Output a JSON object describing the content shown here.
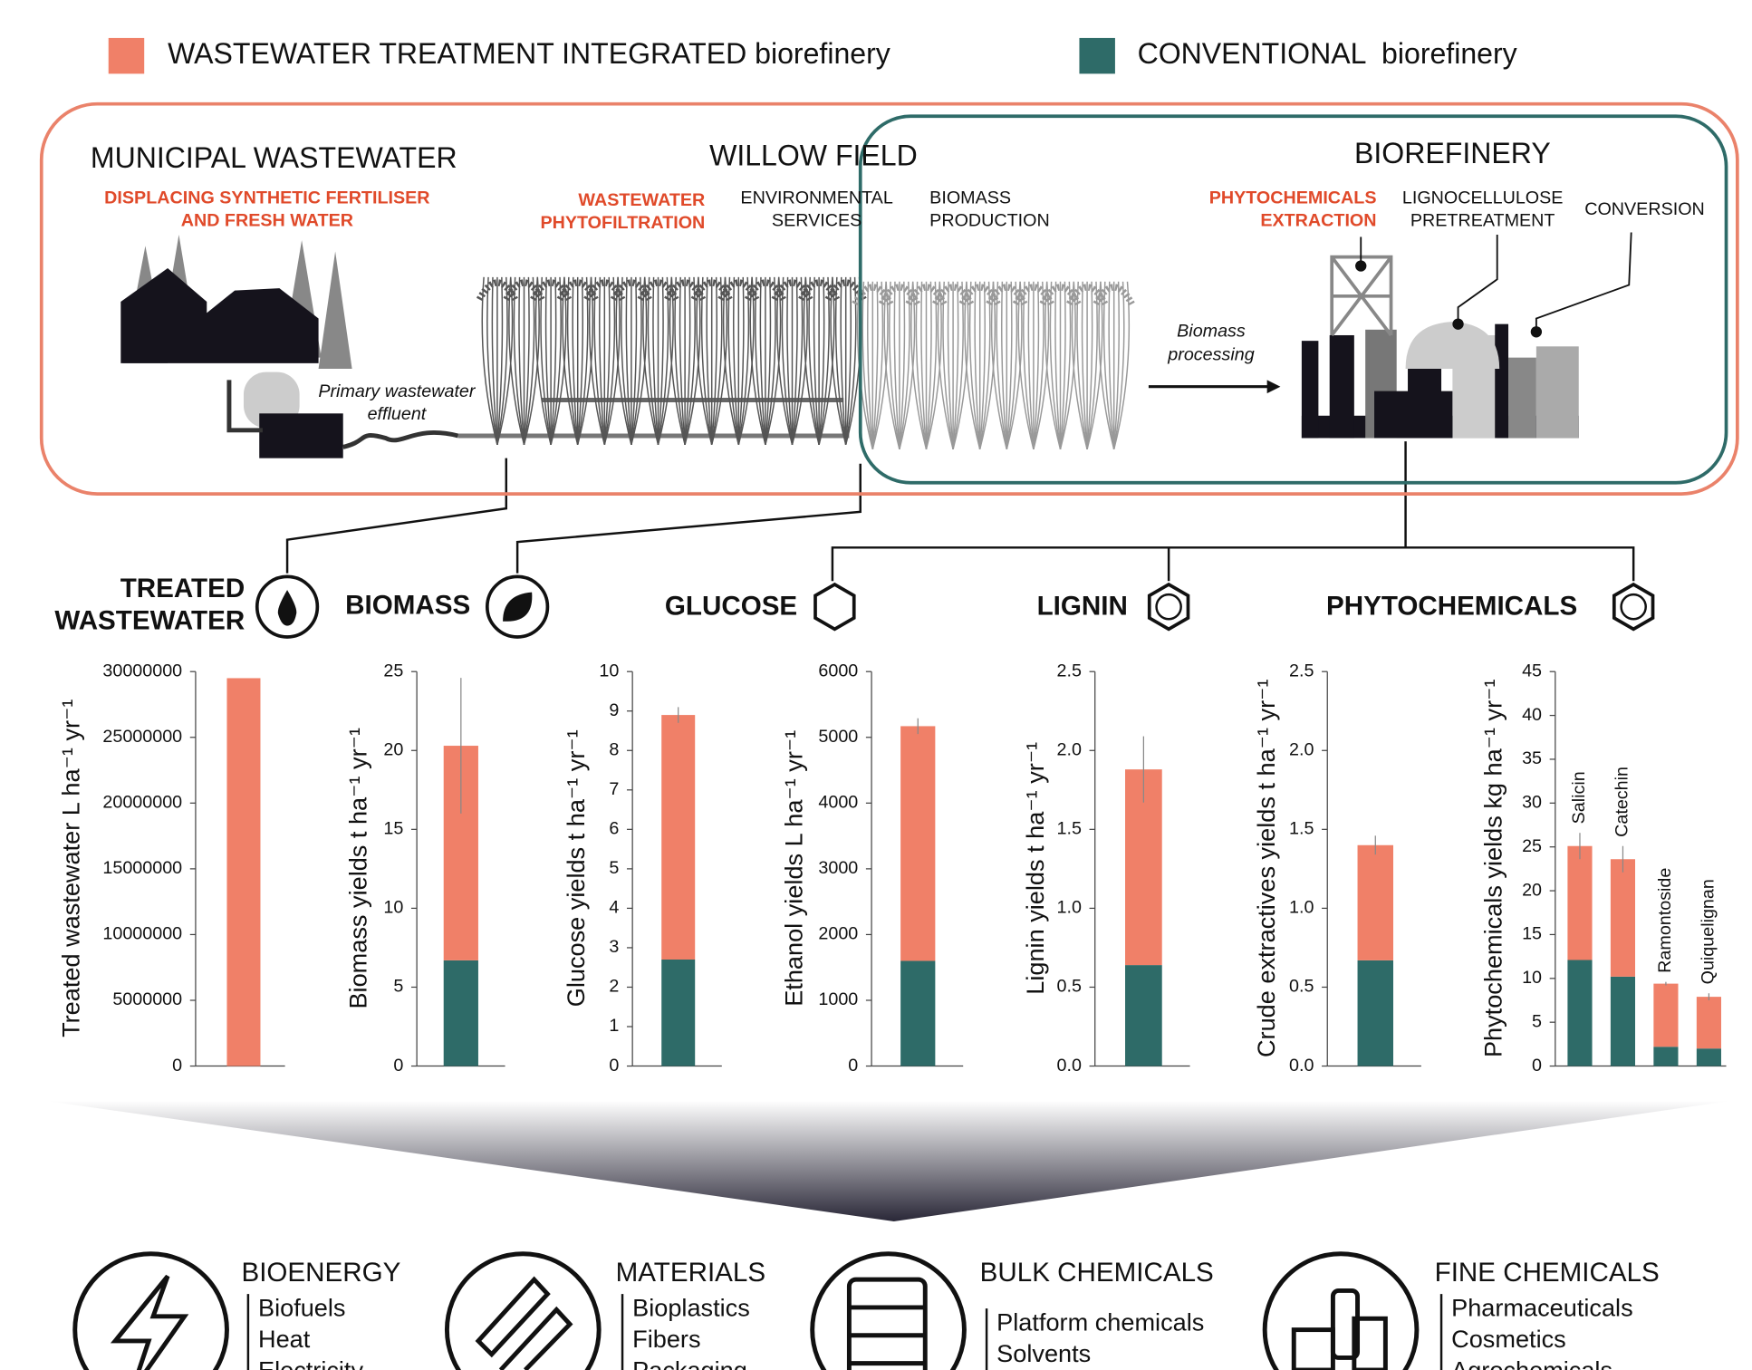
{
  "legend": [
    {
      "label": "WASTEWATER TREATMENT INTEGRATED biorefinery",
      "color": "#f08068"
    },
    {
      "label": "CONVENTIONAL  biorefinery",
      "color": "#2e6b68"
    }
  ],
  "diagram": {
    "municipal": {
      "title": "MUNICIPAL WASTEWATER",
      "note": [
        "DISPLACING SYNTHETIC FERTILISER",
        "AND FRESH WATER"
      ]
    },
    "effluent": [
      "Primary wastewater",
      "effluent"
    ],
    "willow": {
      "title": "WILLOW FIELD",
      "phytofiltration": [
        "WASTEWATER",
        "PHYTOFILTRATION"
      ],
      "services": [
        "ENVIRONMENTAL",
        "SERVICES"
      ],
      "production": [
        "BIOMASS",
        "PRODUCTION"
      ]
    },
    "processing": [
      "Biomass",
      "processing"
    ],
    "biorefinery": {
      "title": "BIOREFINERY",
      "extraction": [
        "PHYTOCHEMICALS",
        "EXTRACTION"
      ],
      "pretreatment": [
        "LIGNOCELLULOSE",
        "PRETREATMENT"
      ],
      "conversion": "CONVERSION"
    },
    "products": {
      "treated_wastewater": [
        "TREATED",
        "WASTEWATER"
      ],
      "biomass": "BIOMASS",
      "glucose": "GLUCOSE",
      "lignin": "LIGNIN",
      "phytochemicals": "PHYTOCHEMICALS"
    },
    "applications": [
      {
        "title": "BIOENERGY",
        "items": [
          "Biofuels",
          "Heat",
          "Electricity"
        ]
      },
      {
        "title": "MATERIALS",
        "items": [
          "Bioplastics",
          "Fibers",
          "Packaging"
        ]
      },
      {
        "title": "BULK CHEMICALS",
        "items": [
          "Platform chemicals",
          "Solvents"
        ]
      },
      {
        "title": "FINE CHEMICALS",
        "items": [
          "Pharmaceuticals",
          "Cosmetics",
          "Agrochemicals"
        ]
      }
    ]
  },
  "chart_data": [
    {
      "type": "bar",
      "stacked": true,
      "ylabel": "Treated wastewater L ha⁻¹ yr⁻¹",
      "categories": [
        null
      ],
      "series": [
        {
          "color": "#f08068",
          "values": [
            29500000
          ]
        }
      ],
      "ylim": [
        0,
        30000000
      ],
      "yticks": [
        0,
        5000000,
        10000000,
        15000000,
        20000000,
        25000000,
        30000000
      ]
    },
    {
      "type": "bar",
      "stacked": true,
      "ylabel": "Biomass yields t ha⁻¹ yr⁻¹",
      "categories": [
        null
      ],
      "series": [
        {
          "color": "#2e6b68",
          "values": [
            6.7
          ]
        },
        {
          "color": "#f08068",
          "values": [
            13.6
          ],
          "errors": [
            4.3
          ]
        }
      ],
      "ylim": [
        0,
        25
      ],
      "yticks": [
        0,
        5,
        10,
        15,
        20,
        25
      ]
    },
    {
      "type": "bar",
      "stacked": true,
      "ylabel": "Glucose yields t ha⁻¹ yr⁻¹",
      "categories": [
        null
      ],
      "series": [
        {
          "color": "#2e6b68",
          "values": [
            2.7
          ]
        },
        {
          "color": "#f08068",
          "values": [
            6.2
          ],
          "errors": [
            0.2
          ]
        }
      ],
      "ylim": [
        0,
        10
      ],
      "yticks": [
        0,
        1,
        2,
        3,
        4,
        5,
        6,
        7,
        8,
        9,
        10
      ]
    },
    {
      "type": "bar",
      "stacked": true,
      "ylabel": "Ethanol yields L ha⁻¹ yr⁻¹",
      "categories": [
        null
      ],
      "series": [
        {
          "color": "#2e6b68",
          "values": [
            1600
          ]
        },
        {
          "color": "#f08068",
          "values": [
            3570
          ],
          "errors": [
            120
          ]
        }
      ],
      "ylim": [
        0,
        6000
      ],
      "yticks": [
        0,
        1000,
        2000,
        3000,
        4000,
        5000,
        6000
      ]
    },
    {
      "type": "bar",
      "stacked": true,
      "ylabel": "Lignin yields t ha⁻¹ yr⁻¹",
      "categories": [
        null
      ],
      "series": [
        {
          "color": "#2e6b68",
          "values": [
            0.64
          ]
        },
        {
          "color": "#f08068",
          "values": [
            1.24
          ],
          "errors": [
            0.21
          ]
        }
      ],
      "ylim": [
        0,
        2.5
      ],
      "yticks": [
        {
          "value": 0,
          "label": "0.0"
        },
        0.5,
        {
          "value": 1,
          "label": "1.0"
        },
        1.5,
        {
          "value": 2,
          "label": "2.0"
        },
        2.5
      ]
    },
    {
      "type": "bar",
      "stacked": true,
      "ylabel": "Crude extractives yields t ha⁻¹ yr⁻¹",
      "categories": [
        null
      ],
      "series": [
        {
          "color": "#2e6b68",
          "values": [
            0.67
          ]
        },
        {
          "color": "#f08068",
          "values": [
            0.73
          ],
          "errors": [
            0.06
          ]
        }
      ],
      "ylim": [
        0,
        2.5
      ],
      "yticks": [
        {
          "value": 0,
          "label": "0.0"
        },
        0.5,
        {
          "value": 1,
          "label": "1.0"
        },
        1.5,
        {
          "value": 2,
          "label": "2.0"
        },
        2.5
      ]
    },
    {
      "type": "bar",
      "stacked": true,
      "ylabel": "Phytochemicals yields kg ha⁻¹ yr⁻¹",
      "categories": [
        "Salicin",
        "Catechin",
        "Ramontoside",
        "Quiquelignan"
      ],
      "series": [
        {
          "color": "#2e6b68",
          "values": [
            12.1,
            10.2,
            2.2,
            2.0
          ]
        },
        {
          "color": "#f08068",
          "values": [
            13.0,
            13.4,
            7.2,
            5.9
          ],
          "errors": [
            1.5,
            1.5,
            0.2,
            0.4
          ]
        }
      ],
      "ylim": [
        0,
        45
      ],
      "yticks": [
        0,
        5,
        10,
        15,
        20,
        25,
        30,
        35,
        40,
        45
      ]
    }
  ]
}
